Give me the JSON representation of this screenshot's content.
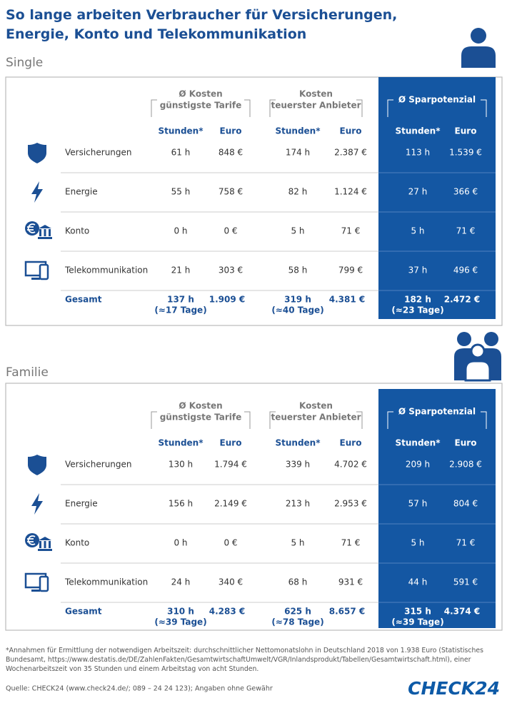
{
  "title": "So lange arbeiten Verbraucher für Versicherungen, Energie, Konto und Telekommunikation",
  "sections": [
    {
      "label": "Single",
      "groups": [
        {
          "line1": "Ø Kosten",
          "line2": "günstigste Tarife"
        },
        {
          "line1": "Kosten",
          "line2": "teuerster Anbieter"
        },
        {
          "line1": "Ø Sparpotenzial"
        }
      ],
      "sub_headers": [
        "Stunden*",
        "Euro",
        "Stunden*",
        "Euro",
        "Stunden*",
        "Euro"
      ],
      "rows": [
        [
          "Versicherungen",
          "61 h",
          "848 €",
          "174 h",
          "2.387 €",
          "113 h",
          "1.539 €"
        ],
        [
          "Energie",
          "55 h",
          "758 €",
          "82 h",
          "1.124 €",
          "27 h",
          "366 €"
        ],
        [
          "Konto",
          "0 h",
          "0 €",
          "5 h",
          "71 €",
          "5 h",
          "71 €"
        ],
        [
          "Telekommunikation",
          "21 h",
          "303 €",
          "58 h",
          "799 €",
          "37 h",
          "496 €"
        ]
      ],
      "total": {
        "label": "Gesamt",
        "cells": [
          "137 h",
          "1.909 €",
          "319 h",
          "4.381 €",
          "182 h",
          "2.472 €"
        ],
        "days": [
          "(≈17 Tage)",
          "(≈40 Tage)",
          "(≈23 Tage)"
        ]
      }
    },
    {
      "label": "Familie",
      "groups": [
        {
          "line1": "Ø Kosten",
          "line2": "günstigste Tarife"
        },
        {
          "line1": "Kosten",
          "line2": "teuerster Anbieter"
        },
        {
          "line1": "Ø Sparpotenzial"
        }
      ],
      "sub_headers": [
        "Stunden*",
        "Euro",
        "Stunden*",
        "Euro",
        "Stunden*",
        "Euro"
      ],
      "rows": [
        [
          "Versicherungen",
          "130 h",
          "1.794 €",
          "339 h",
          "4.702 €",
          "209 h",
          "2.908 €"
        ],
        [
          "Energie",
          "156 h",
          "2.149 €",
          "213 h",
          "2.953 €",
          "57 h",
          "804 €"
        ],
        [
          "Konto",
          "0 h",
          "0 €",
          "5 h",
          "71 €",
          "5 h",
          "71 €"
        ],
        [
          "Telekommunikation",
          "24 h",
          "340 €",
          "68 h",
          "931 €",
          "44 h",
          "591 €"
        ]
      ],
      "total": {
        "label": "Gesamt",
        "cells": [
          "310 h",
          "4.283 €",
          "625 h",
          "8.657 €",
          "315 h",
          "4.374 €"
        ],
        "days": [
          "(≈39 Tage)",
          "(≈78 Tage)",
          "(≈39 Tage)"
        ]
      }
    }
  ],
  "footnote": "*Annahmen für Ermittlung der notwendigen Arbeitszeit: durchschnittlicher Nettomonatslohn in Deutschland 2018 von 1.938 Euro (Statistisches Bundesamt, https://www.destatis.de/DE/ZahlenFakten/GesamtwirtschaftUmwelt/VGR/Inlandsprodukt/Tabellen/Gesamtwirtschaft.html), einer Wochenarbeitszeit von 35 Stunden und einem Arbeitstag von acht Stunden.",
  "source": "Quelle: CHECK24 (www.check24.de/; 089 – 24 24 123); Angaben ohne Gewähr",
  "logo": "CHECK24"
}
